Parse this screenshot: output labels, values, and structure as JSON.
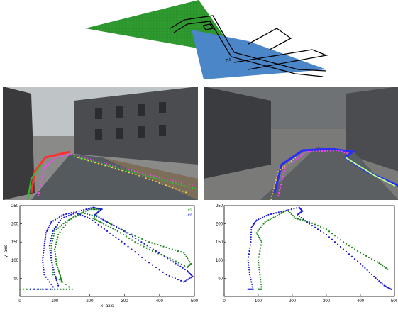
{
  "diagram": {
    "camera1_label": "c¹",
    "camera1_color": "#2f9a2f",
    "camera2_color": "#4a86c8"
  },
  "photos": [
    {
      "name": "street-view-left",
      "track_colors": [
        "#ff3030",
        "#ff44ff",
        "#30c030",
        "#60a0ff",
        "#ffd84a",
        "#ffffff"
      ]
    },
    {
      "name": "street-view-right",
      "track_colors": [
        "#2a2aff",
        "#ff44ff",
        "#b0ff80",
        "#ffd84a",
        "#ffffff"
      ]
    }
  ],
  "chart_data": [
    {
      "type": "scatter",
      "xlabel": "x–axis",
      "ylabel": "y–axis",
      "xlim": [
        0,
        500
      ],
      "ylim": [
        0,
        250
      ],
      "x_ticks": [
        0,
        100,
        200,
        300,
        400,
        500
      ],
      "y_ticks": [
        50,
        100,
        150,
        200,
        250
      ],
      "legend": {
        "position": "top-right",
        "entries": [
          "c¹",
          "c²"
        ]
      },
      "series": [
        {
          "name": "c¹",
          "color": "#1f8a1f",
          "points": [
            [
              0,
              20
            ],
            [
              60,
              20
            ],
            [
              100,
              20
            ],
            [
              150,
              20
            ],
            [
              95,
              60
            ],
            [
              92,
              100
            ],
            [
              90,
              140
            ],
            [
              100,
              180
            ],
            [
              130,
              205
            ],
            [
              165,
              225
            ],
            [
              200,
              240
            ],
            [
              230,
              240
            ],
            [
              210,
              215
            ],
            [
              240,
              200
            ],
            [
              280,
              180
            ],
            [
              330,
              150
            ],
            [
              380,
              125
            ],
            [
              430,
              105
            ],
            [
              480,
              80
            ],
            [
              490,
              90
            ],
            [
              470,
              120
            ],
            [
              420,
              135
            ],
            [
              370,
              150
            ],
            [
              310,
              175
            ],
            [
              260,
              200
            ],
            [
              220,
              220
            ],
            [
              180,
              230
            ],
            [
              140,
              210
            ],
            [
              110,
              170
            ],
            [
              100,
              130
            ],
            [
              105,
              90
            ],
            [
              115,
              60
            ],
            [
              120,
              40
            ]
          ]
        },
        {
          "name": "c²",
          "color": "#1a1ad8",
          "points": [
            [
              30,
              20
            ],
            [
              100,
              20
            ],
            [
              70,
              60
            ],
            [
              65,
              100
            ],
            [
              70,
              140
            ],
            [
              75,
              175
            ],
            [
              90,
              205
            ],
            [
              125,
              225
            ],
            [
              170,
              235
            ],
            [
              210,
              245
            ],
            [
              235,
              240
            ],
            [
              215,
              225
            ],
            [
              250,
              205
            ],
            [
              290,
              185
            ],
            [
              340,
              155
            ],
            [
              390,
              125
            ],
            [
              440,
              95
            ],
            [
              480,
              70
            ],
            [
              495,
              55
            ],
            [
              470,
              40
            ],
            [
              420,
              60
            ],
            [
              360,
              100
            ],
            [
              300,
              145
            ],
            [
              250,
              180
            ],
            [
              200,
              215
            ],
            [
              160,
              230
            ],
            [
              120,
              215
            ],
            [
              95,
              180
            ],
            [
              85,
              140
            ],
            [
              90,
              100
            ],
            [
              100,
              60
            ],
            [
              110,
              30
            ]
          ]
        }
      ]
    },
    {
      "type": "scatter",
      "xlim": [
        0,
        500
      ],
      "ylim": [
        0,
        250
      ],
      "x_ticks": [
        0,
        100,
        200,
        300,
        400,
        500
      ],
      "y_ticks": [
        50,
        100,
        150,
        200,
        250
      ],
      "series": [
        {
          "name": "",
          "color": "#1f8a1f",
          "points": [
            [
              100,
              20
            ],
            [
              110,
              20
            ],
            [
              105,
              60
            ],
            [
              100,
              100
            ],
            [
              110,
              150
            ],
            [
              95,
              175
            ],
            [
              120,
              205
            ],
            [
              150,
              220
            ],
            [
              185,
              238
            ],
            [
              210,
              215
            ],
            [
              250,
              205
            ],
            [
              300,
              185
            ],
            [
              350,
              150
            ],
            [
              400,
              120
            ],
            [
              450,
              95
            ],
            [
              480,
              75
            ]
          ]
        },
        {
          "name": "",
          "color": "#1a1ad8",
          "points": [
            [
              70,
              20
            ],
            [
              85,
              20
            ],
            [
              75,
              60
            ],
            [
              70,
              100
            ],
            [
              78,
              150
            ],
            [
              80,
              190
            ],
            [
              95,
              210
            ],
            [
              130,
              225
            ],
            [
              175,
              235
            ],
            [
              220,
              245
            ],
            [
              230,
              235
            ],
            [
              215,
              225
            ],
            [
              250,
              200
            ],
            [
              300,
              170
            ],
            [
              350,
              130
            ],
            [
              400,
              90
            ],
            [
              440,
              55
            ],
            [
              470,
              30
            ],
            [
              490,
              20
            ]
          ]
        }
      ]
    }
  ]
}
